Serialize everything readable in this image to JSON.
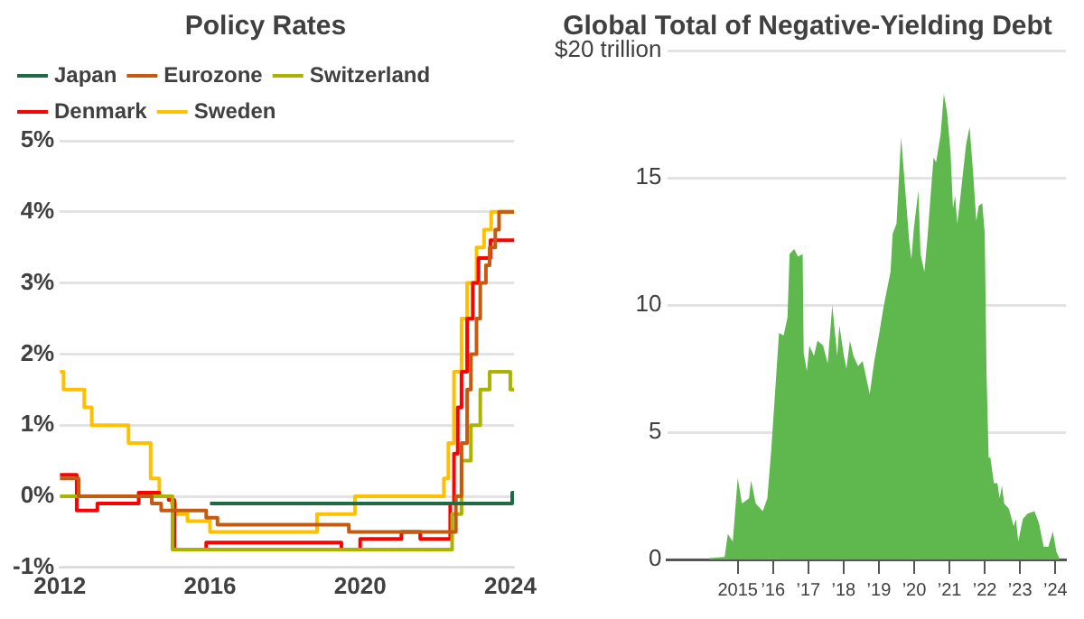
{
  "chart_data": [
    {
      "type": "step",
      "title": "Policy Rates",
      "legend": "top",
      "grid": "y",
      "xlim": [
        2012,
        2024.1
      ],
      "xticks": [
        2012,
        2016,
        2020,
        2024
      ],
      "ylim": [
        -1,
        5
      ],
      "yticks": [
        {
          "value": -1,
          "label": "-1%"
        },
        {
          "value": 0,
          "label": "0%"
        },
        {
          "value": 1,
          "label": "1%"
        },
        {
          "value": 2,
          "label": "2%"
        },
        {
          "value": 3,
          "label": "3%"
        },
        {
          "value": 4,
          "label": "4%"
        },
        {
          "value": 5,
          "label": "5%"
        }
      ],
      "series": [
        {
          "name": "Japan",
          "color": "#1e6b44",
          "x": [
            2016.0,
            2024.05,
            2024.1
          ],
          "values": [
            -0.1,
            0.05,
            0.05
          ]
        },
        {
          "name": "Eurozone",
          "color": "#c55a11",
          "x": [
            2012,
            2012.5,
            2014.45,
            2014.7,
            2015.9,
            2016.2,
            2019.7,
            2022.55,
            2022.7,
            2022.85,
            2022.95,
            2023.1,
            2023.2,
            2023.35,
            2023.45,
            2023.6,
            2023.7,
            2024.1
          ],
          "values": [
            0.25,
            0,
            -0.1,
            -0.2,
            -0.3,
            -0.4,
            -0.5,
            0,
            0.75,
            1.5,
            2.0,
            2.5,
            3.0,
            3.25,
            3.5,
            3.75,
            4.0,
            4.0
          ]
        },
        {
          "name": "Switzerland",
          "color": "#a8b400",
          "x": [
            2012,
            2015.0,
            2022.45,
            2022.7,
            2022.95,
            2023.2,
            2023.45,
            2024.0,
            2024.1
          ],
          "values": [
            0,
            -0.75,
            -0.25,
            0.5,
            1.0,
            1.5,
            1.75,
            1.5,
            1.5
          ]
        },
        {
          "name": "Denmark",
          "color": "#ff0000",
          "x": [
            2012,
            2012.45,
            2013.0,
            2014.1,
            2014.65,
            2014.9,
            2015.05,
            2015.9,
            2019.5,
            2020.0,
            2021.1,
            2021.6,
            2022.4,
            2022.5,
            2022.6,
            2022.7,
            2022.85,
            2023.0,
            2023.15,
            2023.47,
            2024.1
          ],
          "values": [
            0.3,
            -0.2,
            -0.1,
            0.05,
            0,
            -0.05,
            -0.75,
            -0.65,
            -0.75,
            -0.6,
            -0.5,
            -0.6,
            -0.1,
            0.6,
            1.25,
            1.75,
            2.5,
            3.0,
            3.35,
            3.6,
            3.6
          ]
        },
        {
          "name": "Sweden",
          "color": "#ffc000",
          "x": [
            2012,
            2012.1,
            2012.65,
            2012.85,
            2013.83,
            2014.42,
            2014.65,
            2014.98,
            2015.08,
            2015.4,
            2016.0,
            2018.85,
            2019.86,
            2022.23,
            2022.35,
            2022.5,
            2022.7,
            2022.85,
            2023.1,
            2023.3,
            2023.49,
            2024.1
          ],
          "values": [
            1.75,
            1.5,
            1.25,
            1.0,
            0.75,
            0.25,
            0,
            -0.1,
            -0.25,
            -0.35,
            -0.5,
            -0.25,
            0,
            0.25,
            0.75,
            1.75,
            2.5,
            3.0,
            3.5,
            3.75,
            4.0,
            4.0
          ]
        }
      ]
    },
    {
      "type": "area",
      "title": "Global Total of Negative-Yielding Debt",
      "grid": "y",
      "xlim": [
        2013.0,
        2024.3
      ],
      "xticks": [
        {
          "value": 2015,
          "label": "2015"
        },
        {
          "value": 2016,
          "label": "’16"
        },
        {
          "value": 2017,
          "label": "’17"
        },
        {
          "value": 2018,
          "label": "’18"
        },
        {
          "value": 2019,
          "label": "’19"
        },
        {
          "value": 2020,
          "label": "’20"
        },
        {
          "value": 2021,
          "label": "’21"
        },
        {
          "value": 2022,
          "label": "’22"
        },
        {
          "value": 2023,
          "label": "’23"
        },
        {
          "value": 2024,
          "label": "’24"
        }
      ],
      "ylim": [
        0,
        20
      ],
      "yticks": [
        0,
        5,
        10,
        15,
        {
          "value": 20,
          "label": "$20 trillion"
        }
      ],
      "series": [
        {
          "color": "#5fb84e",
          "x": [
            2014.2,
            2014.63,
            2014.72,
            2014.86,
            2015.0,
            2015.12,
            2015.32,
            2015.38,
            2015.51,
            2015.71,
            2015.84,
            2015.95,
            2016.08,
            2016.17,
            2016.3,
            2016.41,
            2016.47,
            2016.6,
            2016.71,
            2016.84,
            2016.87,
            2016.96,
            2017.03,
            2017.16,
            2017.26,
            2017.42,
            2017.55,
            2017.68,
            2017.82,
            2017.88,
            2018.01,
            2018.08,
            2018.18,
            2018.28,
            2018.41,
            2018.54,
            2018.74,
            2018.87,
            2019.0,
            2019.13,
            2019.2,
            2019.33,
            2019.39,
            2019.5,
            2019.55,
            2019.63,
            2019.72,
            2019.86,
            2019.92,
            2019.99,
            2020.12,
            2020.18,
            2020.29,
            2020.38,
            2020.46,
            2020.55,
            2020.62,
            2020.75,
            2020.84,
            2020.93,
            2021.03,
            2021.1,
            2021.16,
            2021.22,
            2021.29,
            2021.47,
            2021.57,
            2021.67,
            2021.76,
            2021.83,
            2021.93,
            2022.0,
            2022.05,
            2022.11,
            2022.16,
            2022.26,
            2022.36,
            2022.42,
            2022.49,
            2022.55,
            2022.68,
            2022.82,
            2022.88,
            2022.95,
            2023.08,
            2023.21,
            2023.41,
            2023.54,
            2023.67,
            2023.8,
            2023.93,
            2024.03,
            2024.13
          ],
          "values": [
            0.05,
            0.1,
            1.0,
            0.7,
            3.2,
            2.2,
            2.4,
            3.1,
            2.2,
            1.9,
            2.4,
            4.3,
            7.0,
            8.9,
            8.8,
            9.5,
            12.0,
            12.2,
            11.9,
            12.0,
            8.1,
            7.4,
            8.4,
            8.0,
            8.6,
            8.4,
            7.7,
            10.0,
            8.0,
            9.2,
            8.0,
            7.5,
            8.6,
            8.0,
            7.6,
            7.8,
            6.5,
            7.8,
            8.8,
            9.9,
            10.4,
            11.3,
            12.8,
            13.2,
            14.5,
            16.6,
            15.0,
            12.5,
            11.8,
            13.0,
            14.5,
            12.0,
            11.3,
            12.7,
            14.2,
            15.8,
            15.6,
            16.7,
            18.3,
            17.6,
            16.0,
            13.8,
            14.3,
            13.2,
            14.0,
            16.3,
            17.0,
            15.2,
            13.3,
            13.9,
            14.0,
            12.8,
            7.4,
            4.0,
            4.0,
            3.0,
            3.0,
            2.4,
            2.9,
            2.2,
            2.0,
            1.3,
            1.6,
            0.7,
            1.6,
            1.8,
            1.9,
            1.4,
            0.5,
            0.5,
            1.1,
            0.3,
            0.0
          ]
        }
      ]
    }
  ]
}
